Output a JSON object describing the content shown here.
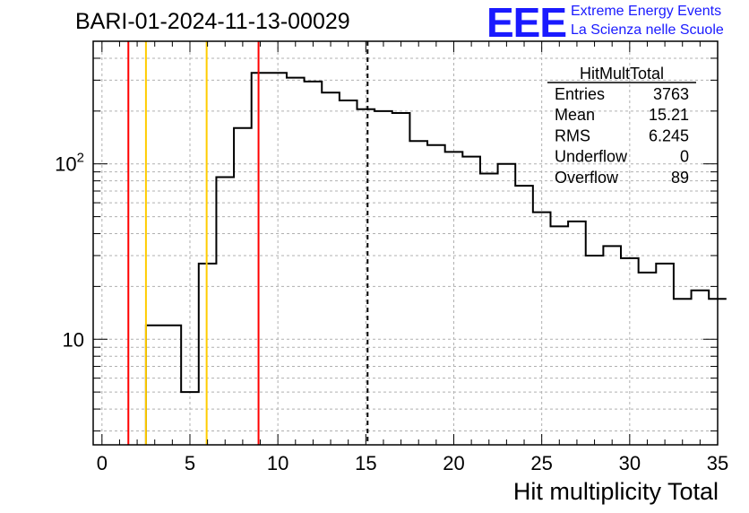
{
  "header": {
    "title": "BARI-01-2024-11-13-00029",
    "logo_text": "EEE",
    "logo_line1": "Extreme Energy Events",
    "logo_line2": "La Scienza nelle Scuole"
  },
  "stats": {
    "name": "HitMultTotal",
    "rows": [
      {
        "label": "Entries",
        "value": "3763"
      },
      {
        "label": "Mean",
        "value": "15.21"
      },
      {
        "label": "RMS",
        "value": "6.245"
      },
      {
        "label": "Underflow",
        "value": "0"
      },
      {
        "label": "Overflow",
        "value": "89"
      }
    ]
  },
  "chart_data": {
    "type": "bar",
    "histogram": true,
    "xlabel": "Hit multiplicity Total",
    "ylabel": "",
    "xlim": [
      -0.5,
      35
    ],
    "ylim": [
      2.5,
      500
    ],
    "yscale": "log",
    "grid": true,
    "x_ticks": [
      0,
      5,
      10,
      15,
      20,
      25,
      30,
      35
    ],
    "y_ticks": [
      {
        "value": 10,
        "base": "10",
        "exp": ""
      },
      {
        "value": 100,
        "base": "10",
        "exp": "2"
      }
    ],
    "bin_width": 1,
    "bin_start": 2.5,
    "values": [
      12,
      12,
      5,
      27,
      84,
      160,
      330,
      330,
      310,
      295,
      255,
      230,
      205,
      200,
      195,
      135,
      128,
      117,
      110,
      88,
      100,
      75,
      53,
      44,
      47,
      30,
      34,
      29,
      24,
      27,
      17,
      19,
      17
    ],
    "vlines": [
      {
        "x": 1.5,
        "color": "#ff0000",
        "style": "solid"
      },
      {
        "x": 2.5,
        "color": "#ffcc00",
        "style": "solid"
      },
      {
        "x": 5.95,
        "color": "#ffcc00",
        "style": "solid"
      },
      {
        "x": 8.9,
        "color": "#ff0000",
        "style": "solid"
      },
      {
        "x": 15.1,
        "color": "#000000",
        "style": "dashed"
      }
    ]
  }
}
